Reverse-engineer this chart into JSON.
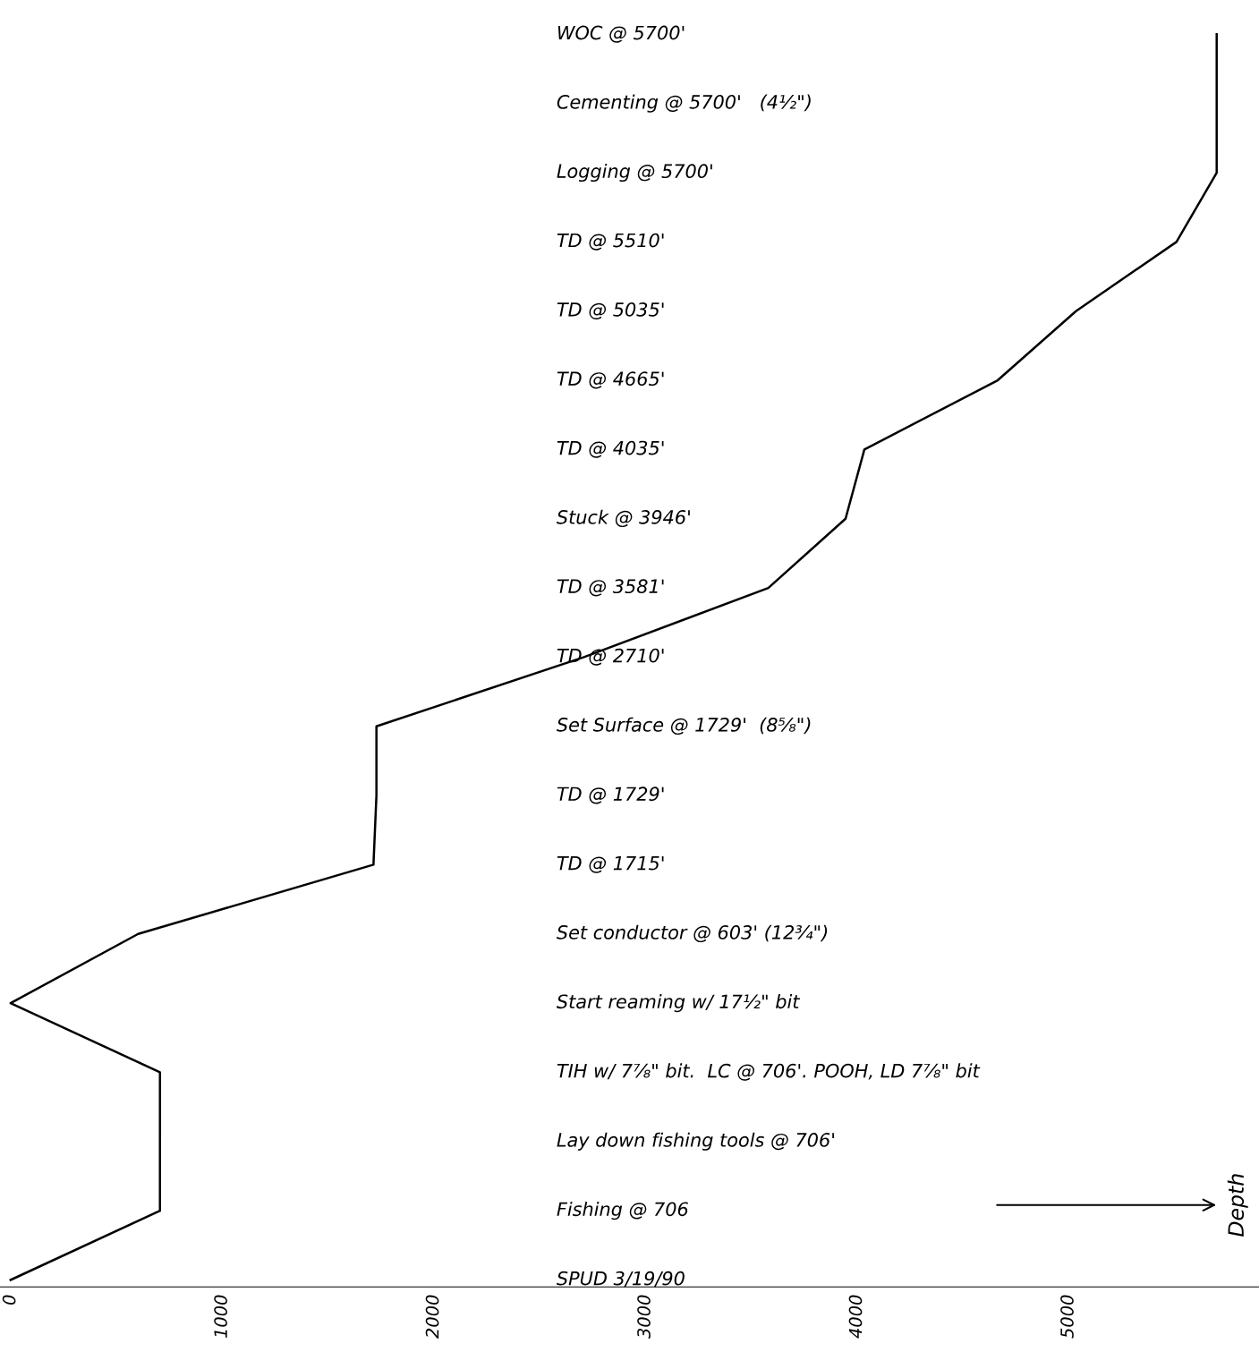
{
  "chart_data": {
    "type": "line",
    "orientation": "horizontal",
    "categories": [
      "WOC @ 5700'",
      "Cementing @ 5700'   (4½\")",
      "Logging @ 5700'",
      "TD @ 5510'",
      "TD @ 5035'",
      "TD @ 4665'",
      "TD @ 4035'",
      "Stuck @ 3946'",
      "TD @ 3581'",
      "TD @ 2710'",
      "Set Surface @ 1729'  (8⅝\")",
      "TD @ 1729'",
      "TD @ 1715'",
      "Set conductor @ 603' (12¾\")",
      "Start reaming w/ 17½\" bit",
      "TIH w/ 7⅞\" bit.  LC @ 706'. POOH, LD 7⅞\" bit",
      "Lay down fishing tools @ 706'",
      "Fishing @ 706",
      "SPUD 3/19/90"
    ],
    "series": [
      {
        "color": "#000000",
        "values": [
          5700,
          5700,
          5700,
          5510,
          5035,
          4665,
          4035,
          3946,
          3581,
          2710,
          1729,
          1729,
          1715,
          603,
          0,
          706,
          706,
          706,
          0
        ]
      }
    ],
    "xlim": [
      -50,
      5900
    ],
    "xticks": [
      0,
      1000,
      2000,
      3000,
      4000,
      5000
    ],
    "grid": false,
    "legend": false,
    "line_style": "solid",
    "annotations": [
      "Depth"
    ]
  }
}
